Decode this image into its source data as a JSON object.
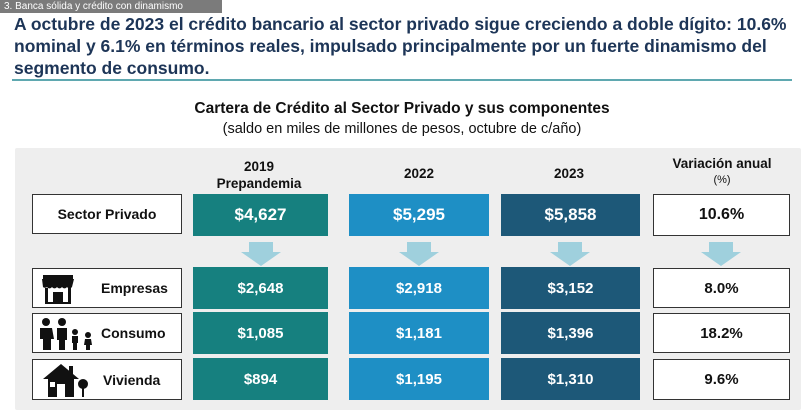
{
  "section_tag": "3. Banca sólida y crédito con dinamismo",
  "headline": "A octubre de 2023 el crédito bancario al sector privado sigue creciendo a doble dígito: 10.6% nominal y 6.1% en términos reales, impulsado principalmente por un fuerte dinamismo del segmento de consumo.",
  "chart": {
    "title": "Cartera de Crédito al Sector Privado y sus componentes",
    "subtitle": "(saldo en miles de millones de pesos, octubre de c/año)"
  },
  "columns": {
    "c2019": "2019\nPrepandemia",
    "c2022": "2022",
    "c2023": "2023",
    "variation": "Variación anual",
    "variation_unit": "(%)"
  },
  "rows": {
    "sector": {
      "label": "Sector Privado",
      "v2019": "$4,627",
      "v2022": "$5,295",
      "v2023": "$5,858",
      "var": "10.6%"
    },
    "empresas": {
      "label": "Empresas",
      "icon": "store-icon",
      "v2019": "$2,648",
      "v2022": "$2,918",
      "v2023": "$3,152",
      "var": "8.0%"
    },
    "consumo": {
      "label": "Consumo",
      "icon": "family-icon",
      "v2019": "$1,085",
      "v2022": "$1,181",
      "v2023": "$1,396",
      "var": "18.2%"
    },
    "vivienda": {
      "label": "Vivienda",
      "icon": "house-icon",
      "v2019": "$894",
      "v2022": "$1,195",
      "v2023": "$1,310",
      "var": "9.6%"
    }
  },
  "colors": {
    "col2019": "#16807f",
    "col2022": "#1e8fc5",
    "col2023": "#1d5878",
    "headline": "#1d3557",
    "arrow": "#9fd0dd"
  }
}
